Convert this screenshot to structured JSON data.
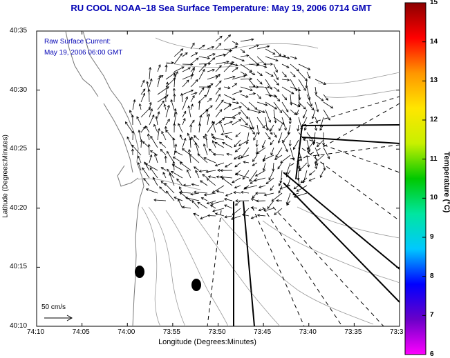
{
  "title": "RU COOL  NOAA–18  Sea Surface Temperature:  May 19, 2006 0714 GMT",
  "annotation": {
    "line1": "Raw Surface Current:",
    "line2": "May 19, 2006 06:00 GMT"
  },
  "axes": {
    "xlabel": "Longitude (Degrees:Minutes)",
    "ylabel": "Latitude (Degrees:Minutes)",
    "x_ticks": [
      "74:10",
      "74:05",
      "74:00",
      "73:55",
      "73:50",
      "73:45",
      "73:40",
      "73:35",
      "73:3"
    ],
    "y_ticks": [
      "40:35",
      "40:30",
      "40:25",
      "40:20",
      "40:15",
      "40:10"
    ]
  },
  "scale_label": "50 cm/s",
  "colorbar": {
    "label": "Temperature (°C)",
    "ticks": [
      "15",
      "14",
      "13",
      "12",
      "11",
      "10",
      "9",
      "8",
      "7",
      "6"
    ],
    "colors": [
      "#ff00ff",
      "#6a00c8",
      "#0000ff",
      "#00c8ff",
      "#00e6a0",
      "#00c800",
      "#c8f000",
      "#ffe600",
      "#ff9600",
      "#ff0000",
      "#8b0000"
    ]
  },
  "colors": {
    "title": "#0000b4",
    "land": "#ffffff",
    "contour": "#888888",
    "vector": "#000000"
  }
}
